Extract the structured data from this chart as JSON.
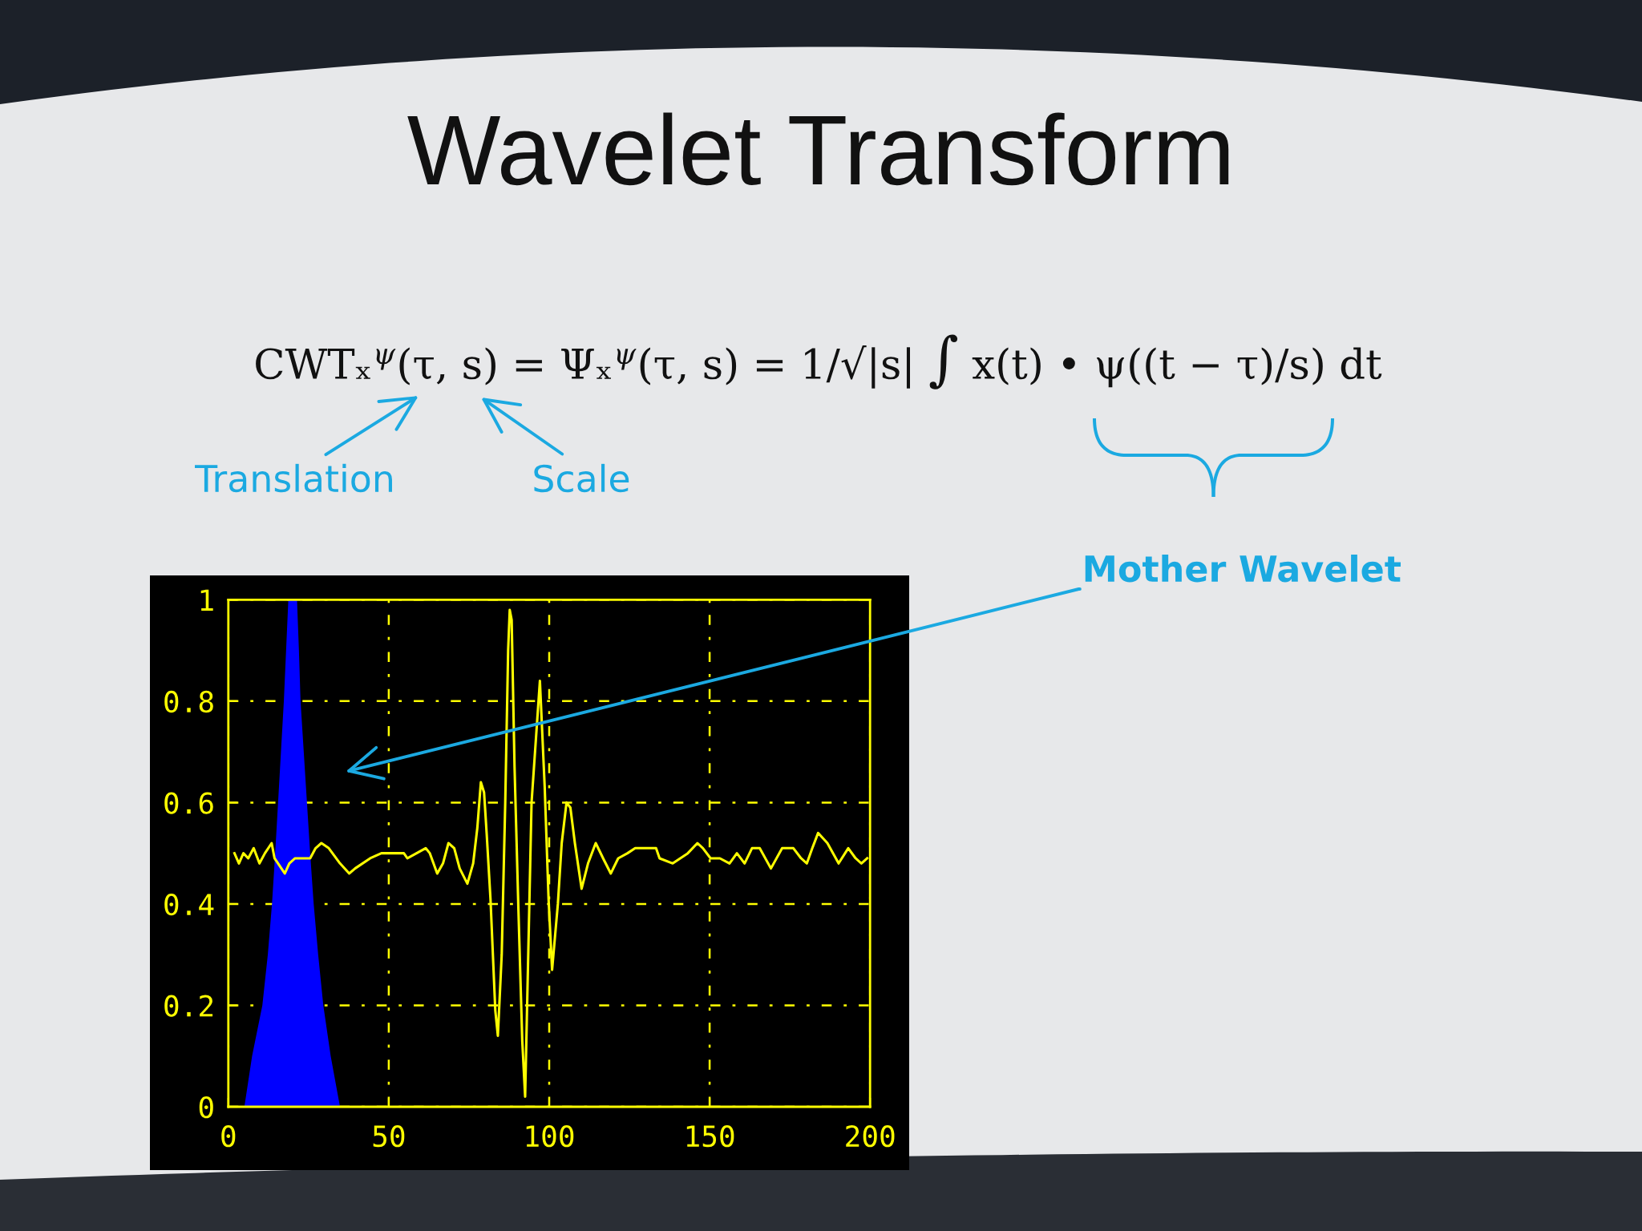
{
  "chart_data": {
    "type": "line",
    "title": "Wavelet Transform",
    "annotations": [
      "CWTₓ$^{ψ}$(τ, s) = Ψₓ$^{ψ}$(τ, s) = 1/√|s| ∫ x(t) • ψ((t − τ)/s) dt",
      "Translation",
      "Scale",
      "Mother Wavelet"
    ],
    "xlim": [
      0,
      200
    ],
    "ylim": [
      0,
      1
    ],
    "xticks": [
      0,
      50,
      100,
      150,
      200
    ],
    "yticks": [
      0,
      0.2,
      0.4,
      0.6,
      0.8,
      1
    ],
    "grid": true,
    "series": [
      {
        "type": "area",
        "color": "#0000ff",
        "x": [
          5,
          7.4,
          10.6,
          12.3,
          13.6,
          14.6,
          15.5,
          16.4,
          17.3,
          18,
          18.7,
          21.4,
          22,
          22.5,
          23.5,
          24.5,
          25.5,
          26.6,
          28,
          29.6,
          31.9,
          34.8
        ],
        "values": [
          0,
          0.1,
          0.2,
          0.3,
          0.4,
          0.5,
          0.6,
          0.7,
          0.8,
          0.9,
          1,
          1,
          0.9,
          0.8,
          0.7,
          0.6,
          0.5,
          0.4,
          0.3,
          0.2,
          0.1,
          0
        ]
      },
      {
        "color": "#ffff00",
        "x": [
          1.9,
          3.3,
          4.7,
          6.2,
          7.9,
          9.7,
          11.4,
          13.5,
          14.4,
          17.6,
          19.0,
          20.8,
          25.5,
          27.2,
          29.0,
          31.3,
          34.8,
          37.7,
          39.5,
          44.2,
          47.7,
          50,
          54.7,
          55.8,
          61.5,
          62.8,
          65.1,
          66.9,
          68.6,
          70.4,
          72.1,
          74.5,
          76.3,
          77.6,
          78.7,
          79.7,
          80.5,
          81.7,
          83.2,
          84.0,
          85.2,
          86.3,
          87.2,
          87.7,
          88.3,
          89.2,
          90.4,
          91.6,
          92.5,
          94.5,
          97.1,
          98.6,
          99.8,
          100.9,
          102.7,
          103.9,
          105.4,
          106.6,
          108,
          110.1,
          112.1,
          114.5,
          116.8,
          119.2,
          121.5,
          124.4,
          126.8,
          133.3,
          134.4,
          138.5,
          143.2,
          146.2,
          147.9,
          150.3,
          153.2,
          156.2,
          158.5,
          160.9,
          163.2,
          165.6,
          169.1,
          172.6,
          176.1,
          178.5,
          180.3,
          182.0,
          183.8,
          186.7,
          190.2,
          193.2,
          195.5,
          197.3,
          199.1
        ],
        "values": [
          0.5,
          0.48,
          0.5,
          0.49,
          0.51,
          0.48,
          0.5,
          0.52,
          0.49,
          0.46,
          0.48,
          0.49,
          0.49,
          0.51,
          0.52,
          0.51,
          0.48,
          0.46,
          0.47,
          0.49,
          0.5,
          0.5,
          0.5,
          0.49,
          0.51,
          0.5,
          0.46,
          0.48,
          0.52,
          0.51,
          0.47,
          0.44,
          0.48,
          0.55,
          0.64,
          0.62,
          0.54,
          0.41,
          0.19,
          0.14,
          0.3,
          0.6,
          0.9,
          0.98,
          0.96,
          0.67,
          0.39,
          0.13,
          0.02,
          0.6,
          0.84,
          0.63,
          0.41,
          0.27,
          0.4,
          0.52,
          0.6,
          0.59,
          0.52,
          0.43,
          0.48,
          0.52,
          0.49,
          0.46,
          0.49,
          0.5,
          0.51,
          0.51,
          0.49,
          0.48,
          0.5,
          0.52,
          0.51,
          0.49,
          0.49,
          0.48,
          0.5,
          0.48,
          0.51,
          0.51,
          0.47,
          0.51,
          0.51,
          0.49,
          0.48,
          0.51,
          0.54,
          0.52,
          0.48,
          0.51,
          0.49,
          0.48,
          0.49
        ]
      }
    ]
  }
}
